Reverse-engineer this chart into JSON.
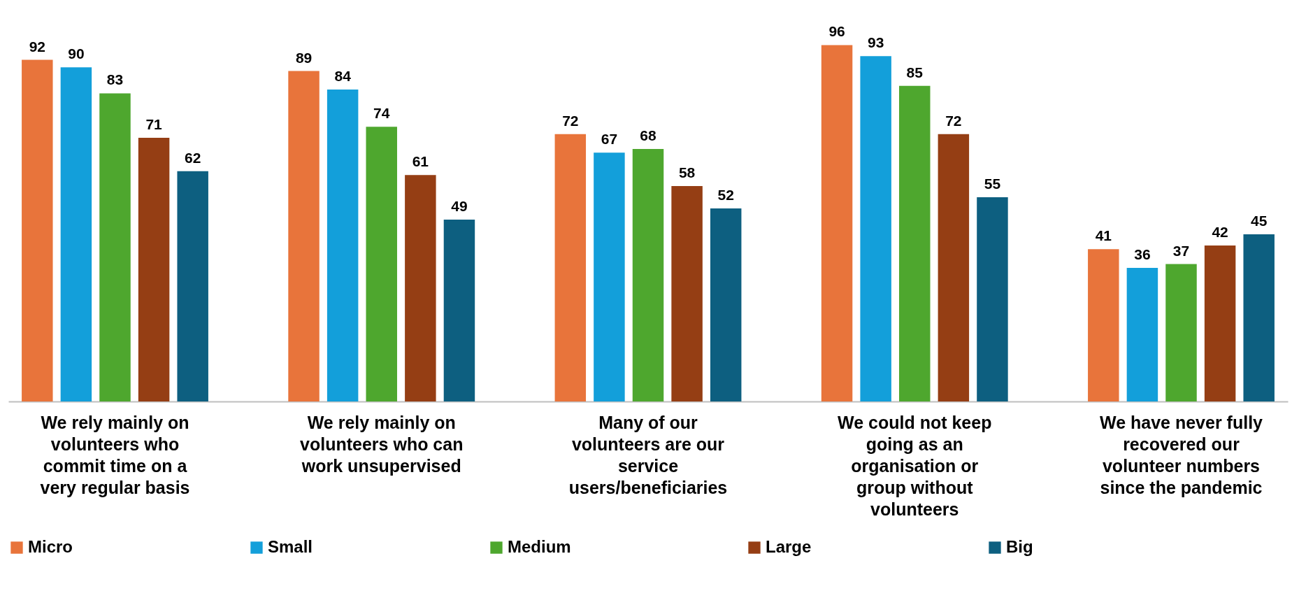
{
  "chart_data": {
    "type": "bar",
    "categories": [
      "We rely mainly on volunteers who commit time on a very regular basis",
      "We rely mainly on volunteers who can work unsupervised",
      "Many of our volunteers are our service users/beneficiaries",
      "We could not keep going as an organisation or group without volunteers",
      "We have never fully recovered our volunteer numbers since the pandemic"
    ],
    "series": [
      {
        "name": "Micro",
        "color": "#e8743b",
        "values": [
          92,
          89,
          72,
          96,
          41
        ]
      },
      {
        "name": "Small",
        "color": "#139fda",
        "values": [
          90,
          84,
          67,
          93,
          36
        ]
      },
      {
        "name": "Medium",
        "color": "#4ea72e",
        "values": [
          83,
          74,
          68,
          85,
          37
        ]
      },
      {
        "name": "Large",
        "color": "#953e14",
        "values": [
          71,
          61,
          58,
          72,
          42
        ]
      },
      {
        "name": "Big",
        "color": "#0d5f80",
        "values": [
          62,
          49,
          52,
          55,
          45
        ]
      }
    ],
    "data_labels": true,
    "legend": "bottom"
  }
}
